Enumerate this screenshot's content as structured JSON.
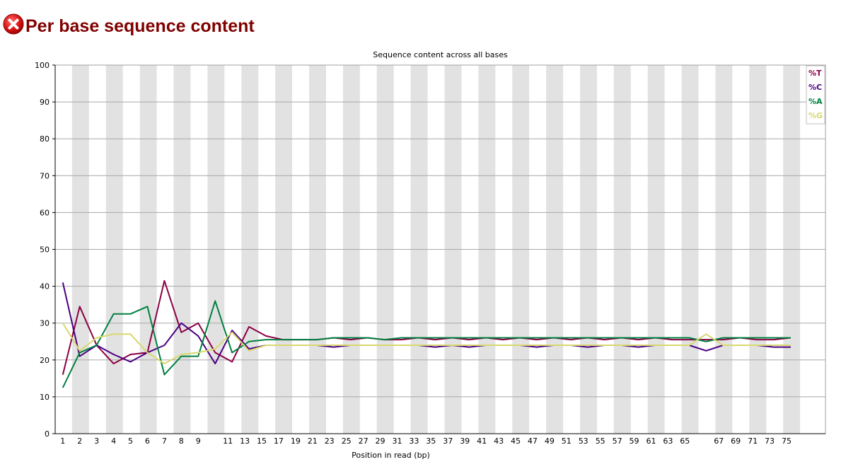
{
  "page": {
    "title": "Per base sequence content",
    "status_icon": "fail-icon"
  },
  "chart_data": {
    "type": "line",
    "title": "Sequence content across all bases",
    "xlabel": "Position in read (bp)",
    "ylabel": "",
    "ylim": [
      0,
      100
    ],
    "yticks": [
      0,
      10,
      20,
      30,
      40,
      50,
      60,
      70,
      80,
      90,
      100
    ],
    "grid": true,
    "legend_position": "top-right",
    "categories": [
      "1",
      "2",
      "3",
      "4",
      "5",
      "6",
      "7",
      "8",
      "9",
      "10",
      "11",
      "13",
      "15",
      "17",
      "19",
      "21",
      "23",
      "25",
      "27",
      "29",
      "31",
      "33",
      "35",
      "37",
      "39",
      "41",
      "43",
      "45",
      "47",
      "49",
      "51",
      "53",
      "55",
      "57",
      "59",
      "61",
      "63",
      "65",
      "66",
      "67",
      "69",
      "71",
      "73",
      "75"
    ],
    "tick_labels": [
      "1",
      "2",
      "3",
      "4",
      "5",
      "6",
      "7",
      "8",
      "9",
      "11",
      "13",
      "15",
      "17",
      "19",
      "21",
      "23",
      "25",
      "27",
      "29",
      "31",
      "33",
      "35",
      "37",
      "39",
      "41",
      "43",
      "45",
      "47",
      "49",
      "51",
      "53",
      "55",
      "57",
      "59",
      "61",
      "63",
      "65",
      "67",
      "69",
      "71",
      "73",
      "75"
    ],
    "series": [
      {
        "name": "%T",
        "color": "#8b0045",
        "values": [
          16,
          34.5,
          24,
          19,
          21.5,
          22,
          41.5,
          27.5,
          30,
          22,
          19.5,
          29,
          26.5,
          25.5,
          25.5,
          25.5,
          26,
          25.5,
          26,
          25.5,
          25.5,
          26,
          25.5,
          26,
          25.5,
          26,
          25.5,
          26,
          25.5,
          26,
          25.5,
          26,
          25.5,
          26,
          25.5,
          26,
          25.5,
          25.5,
          25.5,
          25.5,
          26,
          25.5,
          25.5,
          26
        ]
      },
      {
        "name": "%C",
        "color": "#4b0082",
        "values": [
          41,
          21,
          24,
          21.5,
          19.5,
          22,
          24,
          30,
          26.5,
          19,
          28,
          23,
          24,
          24,
          24,
          24,
          23.5,
          24,
          24,
          24,
          24,
          24,
          23.5,
          24,
          23.5,
          24,
          24,
          24,
          23.5,
          24,
          24,
          23.5,
          24,
          24,
          23.5,
          24,
          24,
          24,
          22.5,
          24,
          24,
          24,
          23.5,
          23.5
        ]
      },
      {
        "name": "%A",
        "color": "#008040",
        "values": [
          12.5,
          22,
          24,
          32.5,
          32.5,
          34.5,
          16,
          21,
          21,
          36,
          22,
          25,
          25.5,
          25.5,
          25.5,
          25.5,
          26,
          26,
          26,
          25.5,
          26,
          26,
          26,
          26,
          26,
          26,
          26,
          26,
          26,
          26,
          26,
          26,
          26,
          26,
          26,
          26,
          26,
          26,
          25,
          26,
          26,
          26,
          26,
          26
        ]
      },
      {
        "name": "%G",
        "color": "#d8d870",
        "values": [
          30,
          22.5,
          26,
          27,
          27,
          22,
          19,
          21.5,
          22,
          23,
          27.5,
          22.5,
          24,
          24,
          24,
          24,
          24,
          24,
          24,
          24,
          24,
          24,
          24,
          24,
          24,
          24,
          24,
          24,
          24,
          24,
          24,
          24,
          24,
          24,
          24,
          24,
          24,
          24,
          27,
          24,
          24,
          24,
          24,
          24
        ]
      }
    ]
  }
}
